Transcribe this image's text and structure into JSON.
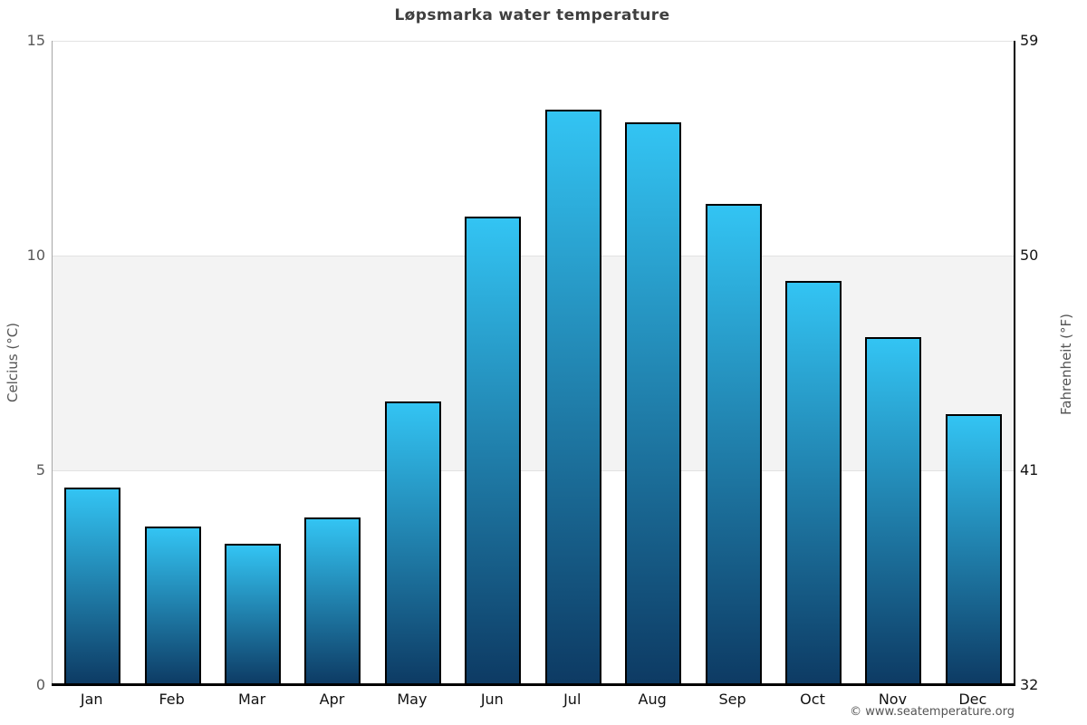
{
  "chart_data": {
    "type": "bar",
    "title": "Løpsmarka water temperature",
    "categories": [
      "Jan",
      "Feb",
      "Mar",
      "Apr",
      "May",
      "Jun",
      "Jul",
      "Aug",
      "Sep",
      "Oct",
      "Nov",
      "Dec"
    ],
    "values": [
      4.6,
      3.7,
      3.3,
      3.9,
      6.6,
      10.9,
      13.4,
      13.1,
      11.2,
      9.4,
      8.1,
      6.3
    ],
    "ylabel_left": "Celcius (°C)",
    "ylabel_right": "Fahrenheit (°F)",
    "y_ticks_left": [
      0,
      5,
      10,
      15
    ],
    "y_ticks_right": [
      32,
      41,
      50,
      59
    ],
    "ylim": [
      0,
      15
    ],
    "band": {
      "from": 5,
      "to": 10,
      "color": "#f3f3f3"
    },
    "grid": true,
    "legend": "none",
    "bar_color_top": "#33C4F3",
    "bar_color_bottom": "#0D3A63",
    "bar_border_color": "#000000"
  },
  "footer": {
    "credit": "© www.seatemperature.org"
  }
}
